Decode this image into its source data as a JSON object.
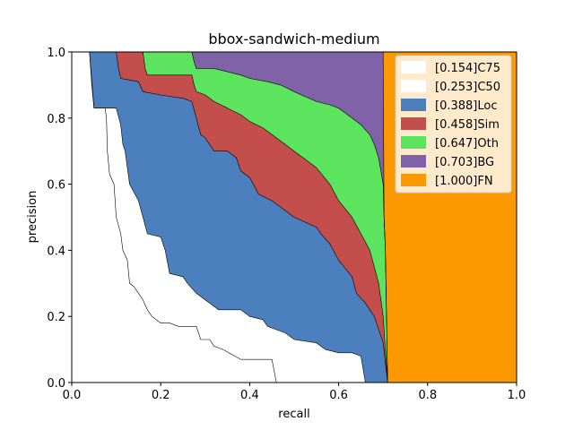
{
  "chart_data": {
    "type": "area",
    "title": "bbox-sandwich-medium",
    "xlabel": "recall",
    "ylabel": "precision",
    "xlim": [
      0,
      1
    ],
    "ylim": [
      0,
      1
    ],
    "xticks": [
      "0.0",
      "0.2",
      "0.4",
      "0.6",
      "0.8",
      "1.0"
    ],
    "yticks": [
      "0.0",
      "0.2",
      "0.4",
      "0.6",
      "0.8",
      "1.0"
    ],
    "legend_position": "top-right",
    "series": [
      {
        "name": "[0.154]C75",
        "color": "#ffffff",
        "points": [
          [
            0.04,
            1.0
          ],
          [
            0.045,
            0.9
          ],
          [
            0.05,
            0.83
          ],
          [
            0.075,
            0.8
          ],
          [
            0.08,
            0.7
          ],
          [
            0.085,
            0.63
          ],
          [
            0.095,
            0.6
          ],
          [
            0.1,
            0.5
          ],
          [
            0.11,
            0.45
          ],
          [
            0.115,
            0.4
          ],
          [
            0.13,
            0.37
          ],
          [
            0.14,
            0.3
          ],
          [
            0.15,
            0.28
          ],
          [
            0.17,
            0.22
          ],
          [
            0.18,
            0.2
          ],
          [
            0.22,
            0.18
          ],
          [
            0.26,
            0.15
          ],
          [
            0.3,
            0.13
          ],
          [
            0.32,
            0.1
          ],
          [
            0.38,
            0.08
          ],
          [
            0.45,
            0.06
          ],
          [
            0.46,
            0.0
          ]
        ]
      },
      {
        "name": "[0.253]C50",
        "color": "#ffffff",
        "points": [
          [
            0.04,
            1.0
          ],
          [
            0.05,
            0.83
          ],
          [
            0.1,
            0.83
          ],
          [
            0.11,
            0.78
          ],
          [
            0.12,
            0.7
          ],
          [
            0.13,
            0.6
          ],
          [
            0.15,
            0.5
          ],
          [
            0.17,
            0.45
          ],
          [
            0.2,
            0.4
          ],
          [
            0.22,
            0.33
          ],
          [
            0.25,
            0.3
          ],
          [
            0.3,
            0.25
          ],
          [
            0.32,
            0.22
          ],
          [
            0.4,
            0.2
          ],
          [
            0.44,
            0.17
          ],
          [
            0.5,
            0.13
          ],
          [
            0.55,
            0.1
          ],
          [
            0.6,
            0.09
          ],
          [
            0.65,
            0.08
          ],
          [
            0.66,
            0.0
          ]
        ]
      },
      {
        "name": "[0.388]Loc",
        "color": "#4c7fbe",
        "points": [
          [
            0.04,
            1.0
          ],
          [
            0.1,
            1.0
          ],
          [
            0.11,
            0.92
          ],
          [
            0.15,
            0.9
          ],
          [
            0.2,
            0.87
          ],
          [
            0.27,
            0.85
          ],
          [
            0.28,
            0.8
          ],
          [
            0.3,
            0.75
          ],
          [
            0.35,
            0.7
          ],
          [
            0.38,
            0.65
          ],
          [
            0.4,
            0.6
          ],
          [
            0.45,
            0.55
          ],
          [
            0.5,
            0.5
          ],
          [
            0.55,
            0.45
          ],
          [
            0.58,
            0.4
          ],
          [
            0.6,
            0.35
          ],
          [
            0.64,
            0.3
          ],
          [
            0.66,
            0.25
          ],
          [
            0.68,
            0.2
          ],
          [
            0.7,
            0.1
          ],
          [
            0.71,
            0.0
          ]
        ]
      },
      {
        "name": "[0.458]Sim",
        "color": "#c44e4c",
        "points": [
          [
            0.1,
            1.0
          ],
          [
            0.16,
            1.0
          ],
          [
            0.17,
            0.93
          ],
          [
            0.27,
            0.93
          ],
          [
            0.28,
            0.88
          ],
          [
            0.32,
            0.85
          ],
          [
            0.35,
            0.82
          ],
          [
            0.4,
            0.79
          ],
          [
            0.45,
            0.75
          ],
          [
            0.5,
            0.7
          ],
          [
            0.55,
            0.65
          ],
          [
            0.6,
            0.55
          ],
          [
            0.65,
            0.45
          ],
          [
            0.68,
            0.35
          ],
          [
            0.7,
            0.2
          ],
          [
            0.705,
            0.1
          ],
          [
            0.71,
            0.0
          ]
        ]
      },
      {
        "name": "[0.647]Oth",
        "color": "#5ce45e",
        "points": [
          [
            0.16,
            1.0
          ],
          [
            0.27,
            1.0
          ],
          [
            0.28,
            0.95
          ],
          [
            0.35,
            0.94
          ],
          [
            0.4,
            0.92
          ],
          [
            0.47,
            0.9
          ],
          [
            0.55,
            0.85
          ],
          [
            0.6,
            0.83
          ],
          [
            0.65,
            0.78
          ],
          [
            0.68,
            0.72
          ],
          [
            0.69,
            0.68
          ],
          [
            0.7,
            0.6
          ],
          [
            0.705,
            0.4
          ],
          [
            0.71,
            0.0
          ]
        ]
      },
      {
        "name": "[0.703]BG",
        "color": "#7f62a7",
        "points": [
          [
            0.27,
            1.0
          ],
          [
            0.7,
            1.0
          ],
          [
            0.705,
            0.5
          ],
          [
            0.71,
            0.0
          ]
        ]
      },
      {
        "name": "[1.000]FN",
        "color": "#fd9900",
        "points": [
          [
            0.7,
            1.0
          ],
          [
            1.0,
            1.0
          ],
          [
            1.0,
            0.0
          ],
          [
            0.71,
            0.0
          ]
        ]
      }
    ],
    "boundaries": {
      "C75": [
        [
          0.04,
          1.0
        ],
        [
          0.045,
          0.9
        ],
        [
          0.05,
          0.83
        ],
        [
          0.075,
          0.83
        ],
        [
          0.078,
          0.8
        ],
        [
          0.08,
          0.7
        ],
        [
          0.085,
          0.63
        ],
        [
          0.095,
          0.6
        ],
        [
          0.1,
          0.5
        ],
        [
          0.11,
          0.45
        ],
        [
          0.115,
          0.4
        ],
        [
          0.125,
          0.37
        ],
        [
          0.13,
          0.3
        ],
        [
          0.14,
          0.29
        ],
        [
          0.15,
          0.27
        ],
        [
          0.16,
          0.25
        ],
        [
          0.17,
          0.22
        ],
        [
          0.18,
          0.2
        ],
        [
          0.19,
          0.19
        ],
        [
          0.2,
          0.18
        ],
        [
          0.22,
          0.18
        ],
        [
          0.24,
          0.17
        ],
        [
          0.28,
          0.17
        ],
        [
          0.29,
          0.13
        ],
        [
          0.31,
          0.13
        ],
        [
          0.32,
          0.11
        ],
        [
          0.34,
          0.1
        ],
        [
          0.38,
          0.07
        ],
        [
          0.45,
          0.07
        ],
        [
          0.46,
          0.0
        ]
      ],
      "C50": [
        [
          0.04,
          1.0
        ],
        [
          0.05,
          0.83
        ],
        [
          0.1,
          0.83
        ],
        [
          0.11,
          0.78
        ],
        [
          0.115,
          0.72
        ],
        [
          0.12,
          0.7
        ],
        [
          0.13,
          0.6
        ],
        [
          0.15,
          0.55
        ],
        [
          0.16,
          0.5
        ],
        [
          0.17,
          0.45
        ],
        [
          0.2,
          0.44
        ],
        [
          0.21,
          0.4
        ],
        [
          0.22,
          0.33
        ],
        [
          0.25,
          0.32
        ],
        [
          0.26,
          0.3
        ],
        [
          0.28,
          0.27
        ],
        [
          0.3,
          0.25
        ],
        [
          0.31,
          0.24
        ],
        [
          0.33,
          0.22
        ],
        [
          0.38,
          0.22
        ],
        [
          0.4,
          0.2
        ],
        [
          0.43,
          0.19
        ],
        [
          0.44,
          0.17
        ],
        [
          0.48,
          0.15
        ],
        [
          0.5,
          0.13
        ],
        [
          0.55,
          0.12
        ],
        [
          0.57,
          0.1
        ],
        [
          0.6,
          0.09
        ],
        [
          0.63,
          0.09
        ],
        [
          0.65,
          0.08
        ],
        [
          0.66,
          0.0
        ]
      ],
      "Loc": [
        [
          0.04,
          1.0
        ],
        [
          0.1,
          1.0
        ],
        [
          0.105,
          0.95
        ],
        [
          0.11,
          0.92
        ],
        [
          0.15,
          0.91
        ],
        [
          0.16,
          0.88
        ],
        [
          0.2,
          0.87
        ],
        [
          0.25,
          0.86
        ],
        [
          0.27,
          0.85
        ],
        [
          0.28,
          0.8
        ],
        [
          0.29,
          0.75
        ],
        [
          0.3,
          0.74
        ],
        [
          0.32,
          0.7
        ],
        [
          0.35,
          0.7
        ],
        [
          0.37,
          0.68
        ],
        [
          0.38,
          0.64
        ],
        [
          0.4,
          0.62
        ],
        [
          0.42,
          0.57
        ],
        [
          0.45,
          0.55
        ],
        [
          0.48,
          0.52
        ],
        [
          0.5,
          0.5
        ],
        [
          0.55,
          0.47
        ],
        [
          0.56,
          0.45
        ],
        [
          0.58,
          0.42
        ],
        [
          0.6,
          0.37
        ],
        [
          0.63,
          0.32
        ],
        [
          0.64,
          0.27
        ],
        [
          0.66,
          0.24
        ],
        [
          0.67,
          0.22
        ],
        [
          0.68,
          0.2
        ],
        [
          0.7,
          0.12
        ],
        [
          0.71,
          0.0
        ]
      ],
      "Sim": [
        [
          0.1,
          1.0
        ],
        [
          0.16,
          1.0
        ],
        [
          0.165,
          0.95
        ],
        [
          0.17,
          0.93
        ],
        [
          0.27,
          0.93
        ],
        [
          0.275,
          0.9
        ],
        [
          0.28,
          0.88
        ],
        [
          0.3,
          0.87
        ],
        [
          0.32,
          0.85
        ],
        [
          0.35,
          0.83
        ],
        [
          0.38,
          0.81
        ],
        [
          0.4,
          0.79
        ],
        [
          0.43,
          0.77
        ],
        [
          0.45,
          0.75
        ],
        [
          0.48,
          0.72
        ],
        [
          0.5,
          0.7
        ],
        [
          0.53,
          0.67
        ],
        [
          0.55,
          0.65
        ],
        [
          0.58,
          0.6
        ],
        [
          0.6,
          0.55
        ],
        [
          0.63,
          0.5
        ],
        [
          0.65,
          0.45
        ],
        [
          0.67,
          0.4
        ],
        [
          0.68,
          0.35
        ],
        [
          0.69,
          0.3
        ],
        [
          0.7,
          0.2
        ],
        [
          0.705,
          0.1
        ],
        [
          0.71,
          0.0
        ]
      ],
      "Oth": [
        [
          0.16,
          1.0
        ],
        [
          0.27,
          1.0
        ],
        [
          0.275,
          0.97
        ],
        [
          0.28,
          0.95
        ],
        [
          0.32,
          0.95
        ],
        [
          0.35,
          0.94
        ],
        [
          0.38,
          0.93
        ],
        [
          0.4,
          0.92
        ],
        [
          0.44,
          0.91
        ],
        [
          0.47,
          0.9
        ],
        [
          0.5,
          0.88
        ],
        [
          0.55,
          0.85
        ],
        [
          0.58,
          0.84
        ],
        [
          0.6,
          0.83
        ],
        [
          0.63,
          0.8
        ],
        [
          0.65,
          0.78
        ],
        [
          0.67,
          0.75
        ],
        [
          0.68,
          0.72
        ],
        [
          0.69,
          0.68
        ],
        [
          0.7,
          0.6
        ],
        [
          0.702,
          0.5
        ],
        [
          0.705,
          0.4
        ],
        [
          0.71,
          0.0
        ]
      ],
      "BG": [
        [
          0.27,
          1.0
        ],
        [
          0.7,
          1.0
        ],
        [
          0.702,
          0.5
        ],
        [
          0.705,
          0.4
        ],
        [
          0.71,
          0.0
        ]
      ]
    }
  }
}
